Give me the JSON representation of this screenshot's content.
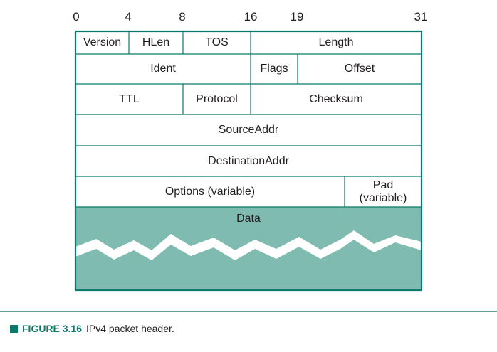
{
  "bit_labels": [
    "0",
    "4",
    "8",
    "16",
    "19",
    "31"
  ],
  "fields": {
    "version": "Version",
    "hlen": "HLen",
    "tos": "TOS",
    "length": "Length",
    "ident": "Ident",
    "flags": "Flags",
    "offset": "Offset",
    "ttl": "TTL",
    "protocol": "Protocol",
    "checksum": "Checksum",
    "source_addr": "SourceAddr",
    "destination_addr": "DestinationAddr",
    "options": "Options (variable)",
    "pad_line1": "Pad",
    "pad_line2": "(variable)",
    "data": "Data"
  },
  "caption": {
    "figure_label": "FIGURE 3.16",
    "text": "IPv4 packet header."
  },
  "colors": {
    "border": "#0a7a6a",
    "data_fill": "#80bbb1",
    "accent": "#0a7a6a"
  }
}
